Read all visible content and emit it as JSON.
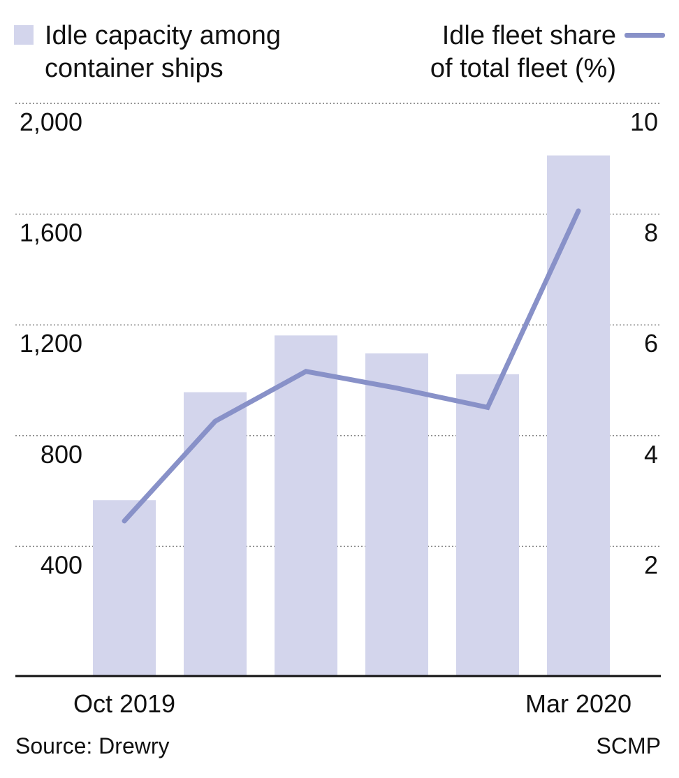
{
  "legend": {
    "bars_label_line1": "Idle capacity among",
    "bars_label_line2": "container ships",
    "line_label_line1": "Idle fleet share",
    "line_label_line2": "of total fleet (%)"
  },
  "colors": {
    "bar": "#d3d5ec",
    "line": "#8891c8",
    "grid": "#888888",
    "axis": "#111111"
  },
  "chart_data": {
    "type": "bar",
    "categories": [
      "Oct 2019",
      "",
      "",
      "",
      "",
      "Mar 2020"
    ],
    "x_tick_labels": [
      "Oct 2019",
      "Mar 2020"
    ],
    "series": [
      {
        "name": "Idle capacity among container ships",
        "type": "bar",
        "axis": "left",
        "values": [
          635,
          1025,
          1230,
          1165,
          1090,
          1880
        ]
      },
      {
        "name": "Idle fleet share of total fleet (%)",
        "type": "line",
        "axis": "right",
        "values": [
          2.8,
          4.6,
          5.5,
          5.2,
          4.85,
          8.4
        ]
      }
    ],
    "y_left": {
      "ticks": [
        "400",
        "800",
        "1,200",
        "1,600",
        "2,000"
      ],
      "tick_values": [
        400,
        800,
        1200,
        1600,
        2000
      ],
      "lim": [
        0,
        2000
      ]
    },
    "y_right": {
      "ticks": [
        "2",
        "4",
        "6",
        "8",
        "10"
      ],
      "tick_values": [
        2,
        4,
        6,
        8,
        10
      ],
      "lim": [
        0,
        10
      ]
    },
    "grid": true,
    "legend_position": "top"
  },
  "footer": {
    "source": "Source: Drewry",
    "credit": "SCMP"
  }
}
